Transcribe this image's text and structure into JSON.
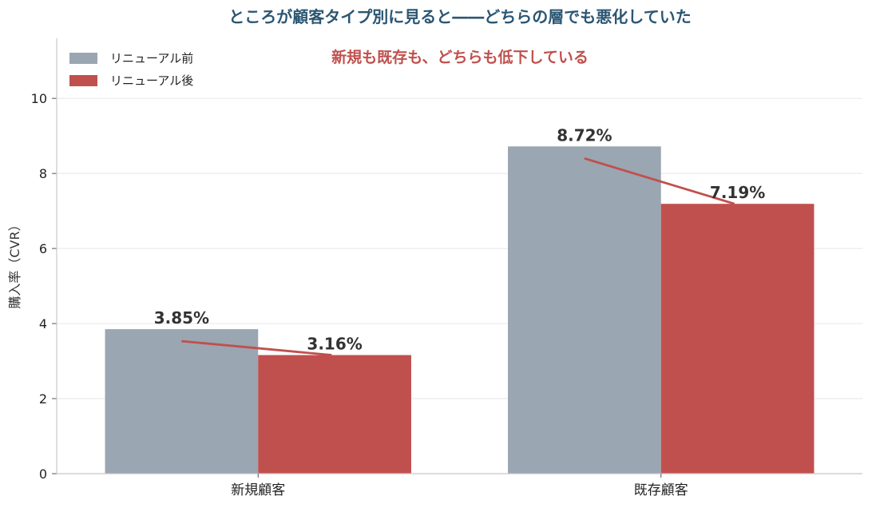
{
  "chart_data": {
    "type": "bar",
    "title": "ところが顧客タイプ別に見ると――どちらの層でも悪化していた",
    "annotation": "新規も既存も、どちらも低下している",
    "ylabel": "購入率（CVR）",
    "xlabel": "",
    "categories": [
      "新規顧客",
      "既存顧客"
    ],
    "series": [
      {
        "name": "リニューアル前",
        "values": [
          3.85,
          8.72
        ],
        "labels": [
          "3.85%",
          "8.72%"
        ],
        "color": "#9aa6b1"
      },
      {
        "name": "リニューアル後",
        "values": [
          3.16,
          7.19
        ],
        "labels": [
          "3.16%",
          "7.19%"
        ],
        "color": "#c0504d"
      }
    ],
    "ylim": [
      0,
      11.6
    ],
    "yticks": [
      0,
      2,
      4,
      6,
      8,
      10
    ],
    "grid": "horizontal",
    "legend_position": "top-left",
    "colors": {
      "title": "#2b5673",
      "annotation": "#c0504d",
      "trend_line": "#c0504d"
    }
  }
}
